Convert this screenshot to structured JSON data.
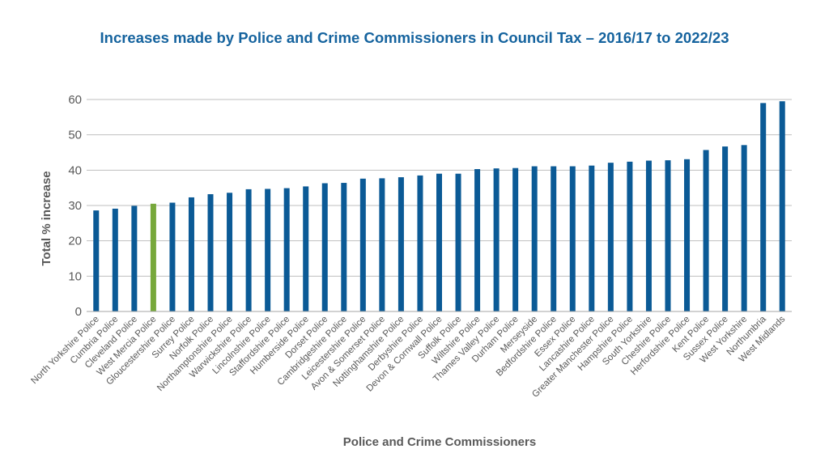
{
  "chart_data": {
    "type": "bar",
    "title": "Increases made by Police and Crime Commissioners in Council Tax – 2016/17 to 2022/23",
    "xlabel": "Police and Crime Commissioners",
    "ylabel": "Total % increase",
    "ylim": [
      0,
      60
    ],
    "yticks": [
      "0",
      "10",
      "20",
      "30",
      "40",
      "50",
      "60"
    ],
    "grid": true,
    "legend": "none",
    "categories": [
      "North Yorkshire Police",
      "Cumbria Police",
      "Cleveland Police",
      "West Mercia Police",
      "Gloucestershire Police",
      "Surrey Police",
      "Norfolk Police",
      "Northamptonshire Police",
      "Warwickshire Police",
      "Lincolnshire Police",
      "Staffordshire Police",
      "Humberside Police",
      "Dorset Police",
      "Cambridgeshire Police",
      "Leicestershire Police",
      "Avon & Somerset Police",
      "Nottinghamshire Police",
      "Derbyshire Police",
      "Devon & Cornwall Police",
      "Suffolk Police",
      "Wiltshire Police",
      "Thames Valley Police",
      "Durham Police",
      "Merseyside",
      "Bedfordshire Police",
      "Essex Police",
      "Lancashire Police",
      "Greater Manchester Police",
      "Hampshire Police",
      "South Yorkshire",
      "Cheshire Police",
      "Herfordshire Police",
      "Kent Police",
      "Sussex Police",
      "West Yorkshire",
      "Northumbria",
      "West Midlands"
    ],
    "values": [
      28.6,
      29.1,
      29.9,
      30.5,
      30.8,
      32.3,
      33.2,
      33.6,
      34.6,
      34.7,
      34.9,
      35.4,
      36.3,
      36.4,
      37.6,
      37.7,
      38.0,
      38.5,
      39.0,
      39.0,
      40.3,
      40.5,
      40.6,
      41.1,
      41.1,
      41.1,
      41.3,
      42.1,
      42.4,
      42.7,
      42.8,
      43.1,
      45.7,
      46.7,
      47.1,
      59.0,
      59.5
    ],
    "colors": {
      "bar": "#0b5a96",
      "highlight": "#77a83b",
      "highlight_index": 3,
      "title": "#15639e",
      "grid": "#bfbfbf",
      "axis": "#a6a6a6"
    }
  }
}
